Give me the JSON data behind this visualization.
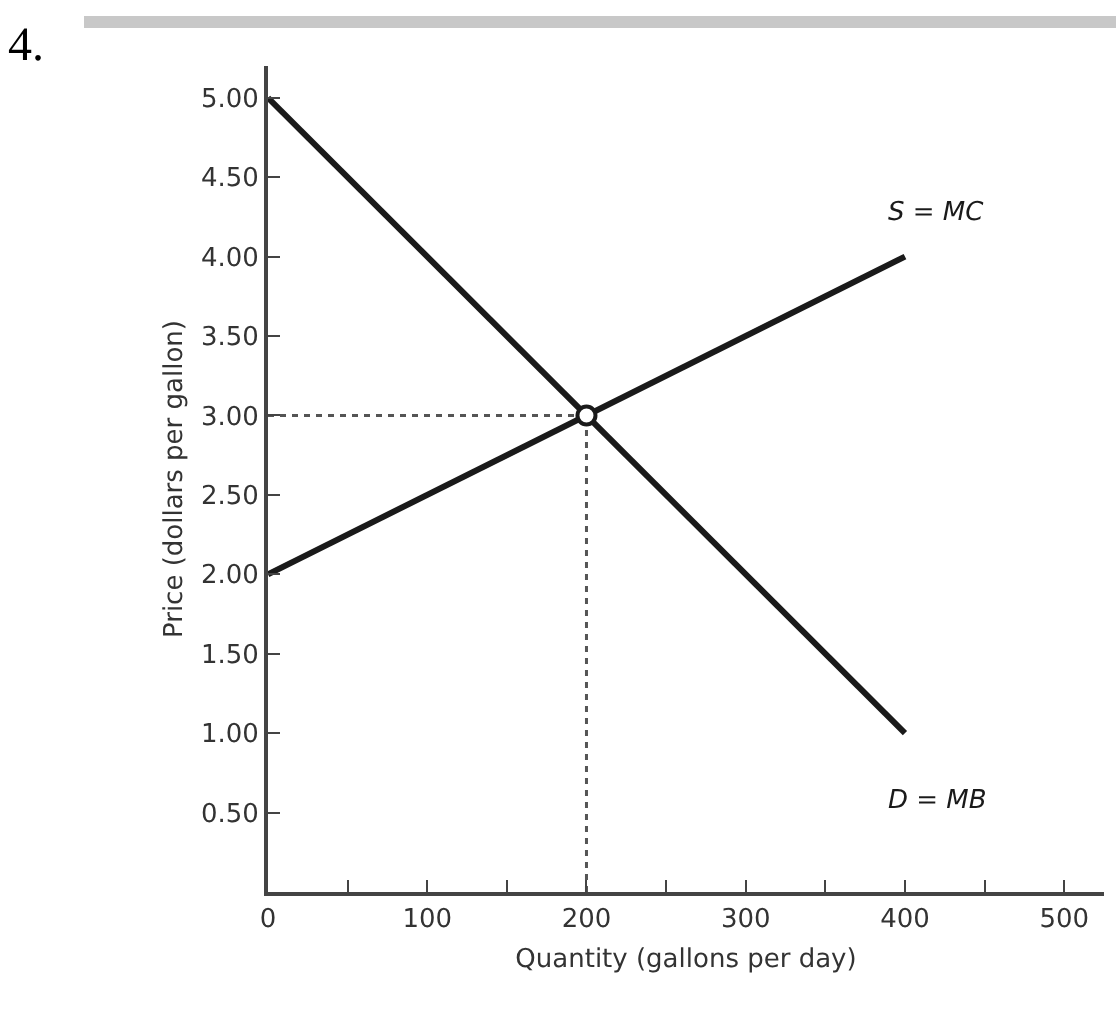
{
  "chart_data": {
    "type": "line",
    "xlabel": "Quantity (gallons per day)",
    "ylabel": "Price (dollars per gallon)",
    "annotations": [
      "4."
    ],
    "series": [
      {
        "name": "S = MC",
        "color": "#1a1a1a",
        "x": [
          0,
          400
        ],
        "values": [
          2.0,
          4.0
        ]
      },
      {
        "name": "D = MB",
        "color": "#1a1a1a",
        "x": [
          0,
          400
        ],
        "values": [
          5.0,
          1.0
        ]
      },
      {
        "type": "scatter",
        "marker": "circle",
        "color": "#1a1a1a",
        "x": [
          200
        ],
        "values": [
          3.0
        ]
      }
    ],
    "xlim": [
      0,
      525
    ],
    "xticks": [
      {
        "value": 0,
        "label": "0"
      },
      {
        "value": 50,
        "label": null
      },
      100,
      {
        "value": 150,
        "label": null
      },
      200,
      {
        "value": 250,
        "label": null
      },
      300,
      {
        "value": 350,
        "label": null
      },
      400,
      {
        "value": 450,
        "label": null
      },
      500
    ],
    "ylim": [
      0,
      5.2
    ],
    "yticks": [
      {
        "value": 0.5,
        "label": "0.50"
      },
      {
        "value": 1,
        "label": "1.00"
      },
      {
        "value": 1.5,
        "label": "1.50"
      },
      {
        "value": 2,
        "label": "2.00"
      },
      {
        "value": 2.5,
        "label": "2.50"
      },
      {
        "value": 3,
        "label": "3.00"
      },
      {
        "value": 3.5,
        "label": "3.50"
      },
      {
        "value": 4,
        "label": "4.00"
      },
      {
        "value": 4.5,
        "label": "4.50"
      },
      {
        "value": 5,
        "label": "5.00"
      }
    ],
    "ref_lines": [
      {
        "axis": "x",
        "value": 200,
        "line_style": "dotted",
        "color": "#555555"
      },
      {
        "axis": "y",
        "value": 3.0,
        "line_style": "dotted",
        "color": "#555555"
      }
    ],
    "grid": false
  }
}
